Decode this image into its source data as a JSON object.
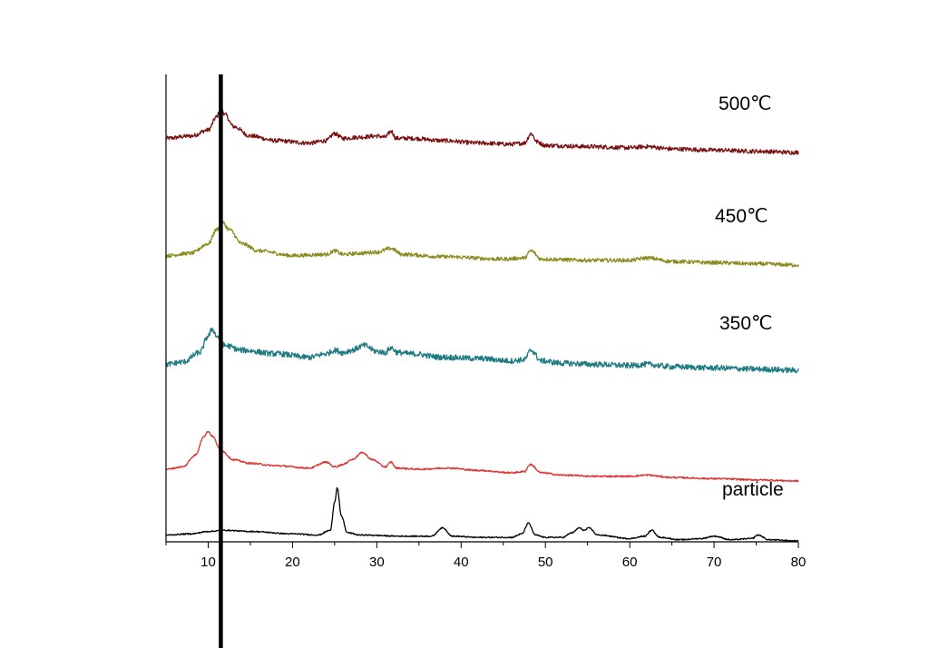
{
  "chart_data": {
    "type": "line",
    "title": "",
    "xlabel": "",
    "ylabel": "",
    "xlim": [
      5,
      80
    ],
    "x_ticks": [
      10,
      20,
      30,
      40,
      50,
      60,
      70,
      80
    ],
    "x_tick_labels": [
      "10",
      "20",
      "30",
      "40",
      "50",
      "60",
      "70",
      "80"
    ],
    "y_ticks_shown": false,
    "grid": false,
    "reference_line_x": 11.5,
    "series": [
      {
        "name": "500℃",
        "color": "#7b1010",
        "noise": 0.9,
        "x": [
          5,
          8,
          10,
          11,
          11.5,
          12,
          13,
          15,
          18,
          22,
          24,
          25,
          26,
          28,
          30,
          31,
          31.7,
          32.3,
          34,
          38,
          42,
          46,
          47.5,
          48.3,
          49,
          50,
          55,
          60,
          62,
          65,
          70,
          75,
          80
        ],
        "y": [
          21,
          22,
          24.5,
          30,
          34,
          31,
          26,
          22,
          20,
          19,
          20,
          23,
          21,
          21.5,
          22,
          21.5,
          24,
          21,
          21,
          20,
          19,
          18.5,
          19,
          23,
          19.5,
          18,
          17.5,
          17,
          17.5,
          16.5,
          16,
          15.5,
          15
        ]
      },
      {
        "name": "450℃",
        "color": "#8b8b1e",
        "noise": 0.8,
        "x": [
          5,
          8,
          10,
          11,
          11.7,
          12.5,
          14,
          16,
          20,
          24,
          25,
          26,
          28,
          30,
          31.7,
          33,
          38,
          45,
          47.5,
          48.3,
          49.5,
          55,
          60,
          62,
          65,
          70,
          75,
          80
        ],
        "y": [
          15,
          16,
          20,
          26,
          29,
          26,
          20,
          17,
          15,
          15.5,
          17,
          15.5,
          16,
          16.5,
          18,
          15.5,
          14.5,
          13.5,
          14,
          17,
          13.5,
          13,
          13,
          14,
          12.5,
          12,
          11.5,
          11
        ]
      },
      {
        "name": "350℃",
        "color": "#1e7b82",
        "noise": 1.2,
        "x": [
          5,
          7,
          9,
          10,
          10.5,
          11,
          12,
          14,
          18,
          22,
          24,
          25,
          26,
          27,
          28.5,
          30,
          31,
          31.7,
          32.5,
          34,
          38,
          42,
          46,
          47.5,
          48.3,
          49.5,
          52,
          56,
          60,
          62,
          65,
          70,
          75,
          80
        ],
        "y": [
          14,
          15,
          19,
          26,
          29,
          26,
          22,
          20,
          18.5,
          17,
          18.5,
          20,
          19,
          20,
          22,
          19.5,
          19,
          21,
          19,
          18.5,
          17,
          16.5,
          15.5,
          16,
          20,
          15.5,
          14.5,
          14,
          13.5,
          14,
          13,
          12.5,
          12,
          11.5
        ]
      },
      {
        "name": "",
        "color": "#e03030",
        "noise": 0.35,
        "x": [
          5,
          7,
          8.5,
          9.5,
          10,
          10.5,
          11.5,
          13,
          15,
          18,
          22,
          24,
          25,
          26,
          27,
          28.3,
          29.5,
          31,
          31.7,
          32.3,
          35,
          38.5,
          42,
          46,
          47.5,
          48.2,
          49.5,
          52,
          56,
          60,
          62,
          65,
          70,
          75,
          80
        ],
        "y": [
          16,
          17,
          22,
          30,
          32,
          30,
          24,
          20,
          18.5,
          17.5,
          16.5,
          19,
          17,
          18,
          20,
          23,
          20,
          17,
          19,
          16.5,
          16,
          16.5,
          15.5,
          14.5,
          15,
          18,
          14.5,
          13.5,
          13,
          13,
          13.5,
          12.5,
          12,
          11.5,
          11
        ]
      },
      {
        "name": "particle",
        "color": "#000000",
        "noise": 0.25,
        "x": [
          5,
          8,
          10,
          12,
          15,
          20,
          23,
          24.5,
          25,
          25.3,
          25.8,
          26.5,
          28,
          33,
          36.5,
          37.8,
          39,
          42,
          46,
          47.2,
          48,
          48.8,
          50,
          52,
          53.2,
          54,
          54.6,
          55.2,
          56.2,
          60,
          61.8,
          62.6,
          63.6,
          66,
          68.5,
          70,
          72,
          74.5,
          75.2,
          76.5,
          80
        ],
        "y": [
          8,
          8.5,
          9.5,
          10,
          9.5,
          8.5,
          8,
          10,
          22,
          28,
          16,
          9,
          8,
          7.5,
          7.5,
          11,
          7.5,
          7,
          7,
          8.5,
          13,
          8,
          7,
          7,
          9,
          11,
          10,
          11,
          8,
          6.5,
          7.5,
          10,
          7,
          6,
          6.5,
          7.5,
          6,
          6.5,
          8,
          6,
          5.5
        ]
      }
    ]
  }
}
